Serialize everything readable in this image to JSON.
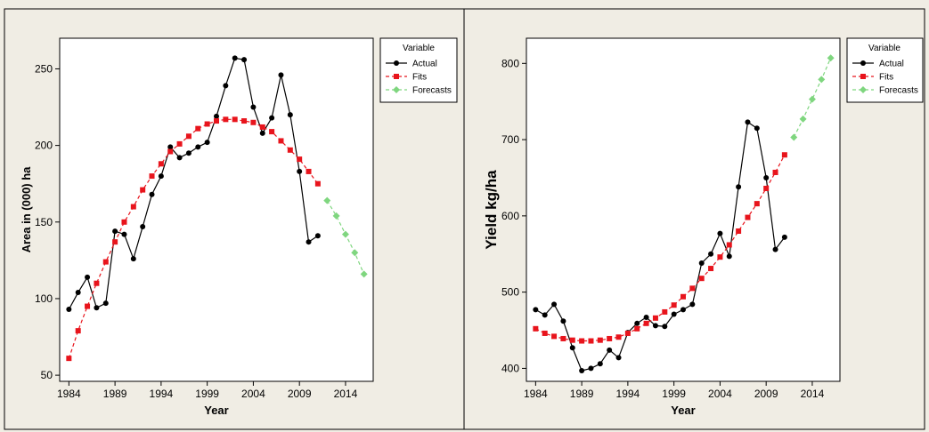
{
  "chart_data": [
    {
      "type": "line",
      "xlabel": "Year",
      "ylabel": "Area in (000) ha",
      "x_ticks": [
        1984,
        1989,
        1994,
        1999,
        2004,
        2009,
        2014
      ],
      "y_ticks": [
        50,
        100,
        150,
        200,
        250
      ],
      "xlim": [
        1983,
        2017
      ],
      "ylim": [
        46,
        270
      ],
      "legend": {
        "title": "Variable",
        "placement": "top-right outside plot"
      },
      "series": [
        {
          "name": "Actual",
          "color": "#000000",
          "marker": "circle",
          "line": "solid",
          "x": [
            1984,
            1985,
            1986,
            1987,
            1988,
            1989,
            1990,
            1991,
            1992,
            1993,
            1994,
            1995,
            1996,
            1997,
            1998,
            1999,
            2000,
            2001,
            2002,
            2003,
            2004,
            2005,
            2006,
            2007,
            2008,
            2009,
            2010,
            2011
          ],
          "values": [
            93,
            104,
            114,
            94,
            97,
            144,
            142,
            126,
            147,
            168,
            180,
            199,
            192,
            195,
            199,
            202,
            219,
            239,
            257,
            256,
            225,
            208,
            218,
            246,
            220,
            183,
            137,
            141
          ]
        },
        {
          "name": "Fits",
          "color": "#e8141c",
          "marker": "square",
          "line": "dashed",
          "x": [
            1984,
            1985,
            1986,
            1987,
            1988,
            1989,
            1990,
            1991,
            1992,
            1993,
            1994,
            1995,
            1996,
            1997,
            1998,
            1999,
            2000,
            2001,
            2002,
            2003,
            2004,
            2005,
            2006,
            2007,
            2008,
            2009,
            2010,
            2011
          ],
          "values": [
            61,
            79,
            95,
            110,
            124,
            137,
            150,
            160,
            171,
            180,
            188,
            196,
            201,
            206,
            211,
            214,
            216,
            217,
            217,
            216,
            215,
            212,
            209,
            203,
            197,
            191,
            183,
            175
          ]
        },
        {
          "name": "Forecasts",
          "color": "#7fd67f",
          "marker": "diamond",
          "line": "dashed",
          "x": [
            2012,
            2013,
            2014,
            2015,
            2016
          ],
          "values": [
            164,
            154,
            142,
            130,
            116
          ]
        }
      ]
    },
    {
      "type": "line",
      "xlabel": "Year",
      "ylabel": "Yield kg/ha",
      "x_ticks": [
        1984,
        1989,
        1994,
        1999,
        2004,
        2009,
        2014
      ],
      "y_ticks": [
        400,
        500,
        600,
        700,
        800
      ],
      "xlim": [
        1983,
        2017
      ],
      "ylim": [
        383,
        833
      ],
      "legend": {
        "title": "Variable",
        "placement": "top-right outside plot"
      },
      "series": [
        {
          "name": "Actual",
          "color": "#000000",
          "marker": "circle",
          "line": "solid",
          "x": [
            1984,
            1985,
            1986,
            1987,
            1988,
            1989,
            1990,
            1991,
            1992,
            1993,
            1994,
            1995,
            1996,
            1997,
            1998,
            1999,
            2000,
            2001,
            2002,
            2003,
            2004,
            2005,
            2006,
            2007,
            2008,
            2009,
            2010,
            2011
          ],
          "values": [
            477,
            470,
            484,
            462,
            427,
            397,
            400,
            406,
            424,
            414,
            447,
            459,
            467,
            456,
            455,
            471,
            477,
            484,
            538,
            550,
            577,
            547,
            638,
            723,
            715,
            650,
            556,
            572
          ]
        },
        {
          "name": "Fits",
          "color": "#e8141c",
          "marker": "square",
          "line": "dashed",
          "x": [
            1984,
            1985,
            1986,
            1987,
            1988,
            1989,
            1990,
            1991,
            1992,
            1993,
            1994,
            1995,
            1996,
            1997,
            1998,
            1999,
            2000,
            2001,
            2002,
            2003,
            2004,
            2005,
            2006,
            2007,
            2008,
            2009,
            2010,
            2011
          ],
          "values": [
            452,
            446,
            442,
            439,
            437,
            436,
            436,
            437,
            439,
            441,
            446,
            452,
            459,
            466,
            474,
            483,
            494,
            505,
            518,
            531,
            546,
            562,
            580,
            598,
            616,
            636,
            657,
            680
          ]
        },
        {
          "name": "Forecasts",
          "color": "#7fd67f",
          "marker": "diamond",
          "line": "dashed",
          "x": [
            2012,
            2013,
            2014,
            2015,
            2016
          ],
          "values": [
            703,
            727,
            753,
            779,
            807
          ]
        }
      ]
    }
  ]
}
